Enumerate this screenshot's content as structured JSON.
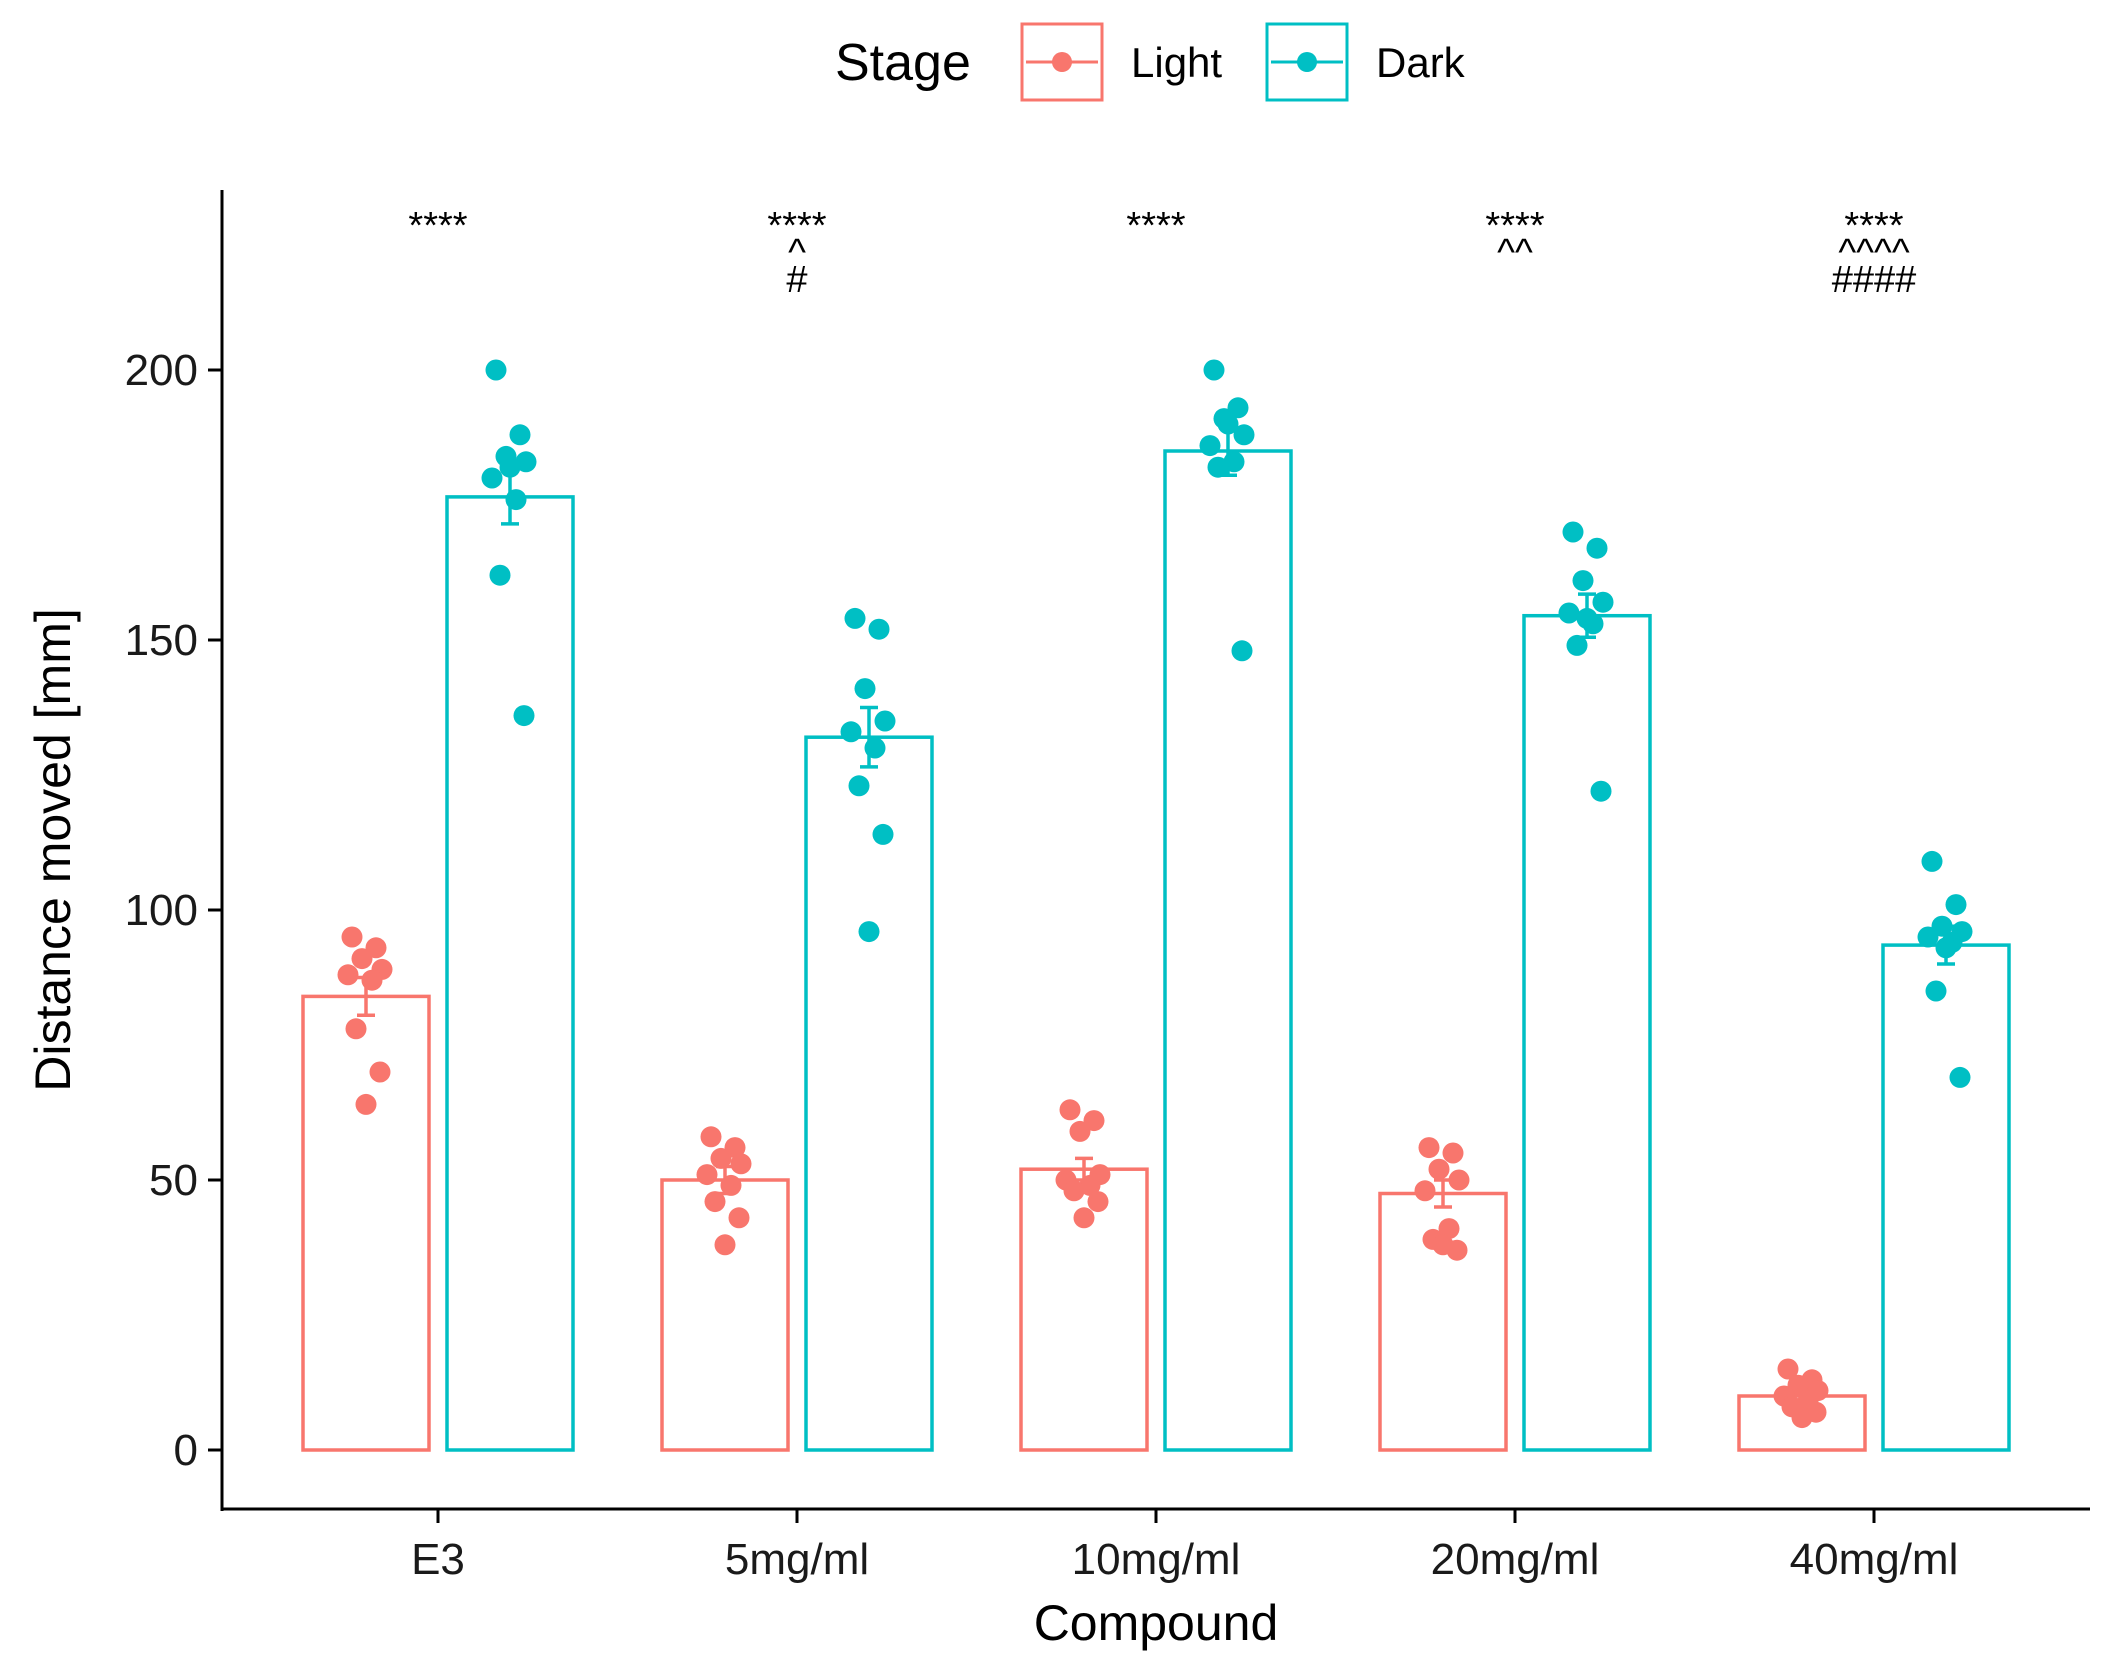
{
  "chart_data": {
    "type": "bar",
    "title": "",
    "xlabel": "Compound",
    "ylabel": "Distance moved [mm]",
    "ylim": [
      -11,
      233
    ],
    "yticks": [
      0,
      50,
      100,
      150,
      200
    ],
    "categories": [
      "E3",
      "5mg/ml",
      "10mg/ml",
      "20mg/ml",
      "40mg/ml"
    ],
    "legend": {
      "title": "Stage",
      "position": "top"
    },
    "series": [
      {
        "name": "Light",
        "color": "#F8766D",
        "values": [
          84,
          50,
          52,
          47.5,
          10
        ],
        "se": [
          3.5,
          2.5,
          2,
          2.5,
          1
        ],
        "points": [
          [
            95,
            93,
            91,
            89,
            88,
            87,
            78,
            70,
            64
          ],
          [
            58,
            56,
            54,
            53,
            51,
            49,
            46,
            43,
            38
          ],
          [
            63,
            61,
            59,
            51,
            50,
            49,
            48,
            46,
            43
          ],
          [
            56,
            55,
            52,
            50,
            48,
            41,
            39,
            37,
            38
          ],
          [
            15,
            13,
            12,
            11,
            10,
            9,
            8,
            7,
            6
          ]
        ]
      },
      {
        "name": "Dark",
        "color": "#00BFC4",
        "values": [
          176.5,
          132,
          185,
          154.5,
          93.5
        ],
        "se": [
          5,
          5.5,
          4.5,
          4,
          3.5
        ],
        "points": [
          [
            200,
            188,
            184,
            183,
            180,
            176,
            162,
            136,
            182
          ],
          [
            154,
            152,
            141,
            135,
            133,
            130,
            123,
            114,
            96
          ],
          [
            200,
            193,
            191,
            188,
            186,
            183,
            182,
            148,
            190
          ],
          [
            170,
            167,
            161,
            157,
            155,
            153,
            149,
            122,
            154
          ],
          [
            109,
            101,
            97,
            96,
            95,
            94,
            85,
            69,
            93
          ]
        ]
      }
    ],
    "annotations": [
      [
        "****"
      ],
      [
        "****",
        "^",
        "#"
      ],
      [
        "****"
      ],
      [
        "****",
        "^^"
      ],
      [
        "****",
        "^^^^",
        "####"
      ]
    ]
  }
}
